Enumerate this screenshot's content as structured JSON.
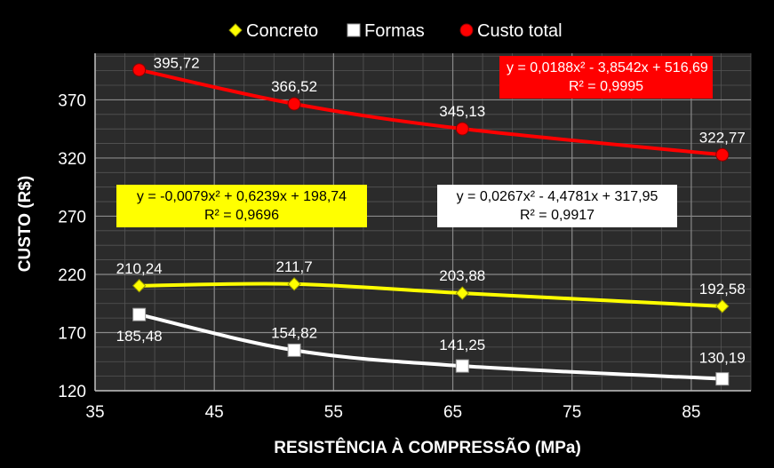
{
  "chart_data": {
    "type": "line",
    "xlabel": "RESISTÊNCIA À COMPRESSÃO (MPa)",
    "ylabel": "CUSTO (R$)",
    "xlim": [
      35,
      90
    ],
    "ylim": [
      120,
      410
    ],
    "xticks": [
      "35",
      "45",
      "55",
      "65",
      "75",
      "85"
    ],
    "yticks": [
      "120",
      "170",
      "220",
      "270",
      "320",
      "370"
    ],
    "xtick_values": [
      35,
      45,
      55,
      65,
      75,
      85
    ],
    "ytick_values": [
      120,
      170,
      220,
      270,
      320,
      370
    ],
    "grid": true,
    "legend_position": "top",
    "x": [
      38.7,
      51.7,
      65.8,
      87.6
    ],
    "series": [
      {
        "name": "Concreto",
        "marker": "diamond",
        "color": "#ffff00",
        "values": [
          210.24,
          211.7,
          203.88,
          192.58
        ],
        "labels": [
          "210,24",
          "211,7",
          "203,88",
          "192,58"
        ]
      },
      {
        "name": "Formas",
        "marker": "square",
        "color": "#ffffff",
        "values": [
          185.48,
          154.82,
          141.25,
          130.19
        ],
        "labels": [
          "185,48",
          "154,82",
          "141,25",
          "130,19"
        ]
      },
      {
        "name": "Custo total",
        "marker": "circle",
        "color": "#ff0000",
        "values": [
          395.72,
          366.52,
          345.13,
          322.77
        ],
        "labels": [
          "395,72",
          "366,52",
          "345,13",
          "322,77"
        ]
      }
    ],
    "trendlines": {
      "concreto": {
        "eq": "y = -0,0079x² + 0,6239x + 198,74",
        "r2": "R² = 0,9696"
      },
      "formas": {
        "eq": "y = 0,0267x² - 4,4781x + 317,95",
        "r2": "R² = 0,9917"
      },
      "total": {
        "eq": "y = 0,0188x² - 3,8542x + 516,69",
        "r2": "R² = 0,9995"
      }
    }
  }
}
